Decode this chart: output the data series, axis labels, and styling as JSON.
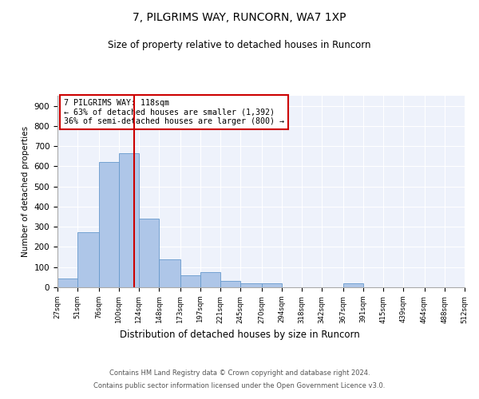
{
  "title1": "7, PILGRIMS WAY, RUNCORN, WA7 1XP",
  "title2": "Size of property relative to detached houses in Runcorn",
  "xlabel": "Distribution of detached houses by size in Runcorn",
  "ylabel": "Number of detached properties",
  "bar_edges": [
    27,
    51,
    76,
    100,
    124,
    148,
    173,
    197,
    221,
    245,
    270,
    294,
    318,
    342,
    367,
    391,
    415,
    439,
    464,
    488,
    512
  ],
  "bar_heights": [
    42,
    275,
    620,
    665,
    340,
    140,
    60,
    75,
    30,
    20,
    18,
    0,
    0,
    0,
    18,
    0,
    0,
    0,
    0,
    0
  ],
  "bar_color": "#aec6e8",
  "bar_edgecolor": "#6699cc",
  "property_size": 118,
  "property_label": "7 PILGRIMS WAY: 118sqm",
  "annotation_line1": "← 63% of detached houses are smaller (1,392)",
  "annotation_line2": "36% of semi-detached houses are larger (800) →",
  "vline_color": "#cc0000",
  "annotation_box_edgecolor": "#cc0000",
  "background_color": "#ffffff",
  "plot_bg_color": "#eef2fb",
  "grid_color": "#ffffff",
  "ylim": [
    0,
    950
  ],
  "yticks": [
    0,
    100,
    200,
    300,
    400,
    500,
    600,
    700,
    800,
    900
  ],
  "footer_line1": "Contains HM Land Registry data © Crown copyright and database right 2024.",
  "footer_line2": "Contains public sector information licensed under the Open Government Licence v3.0."
}
